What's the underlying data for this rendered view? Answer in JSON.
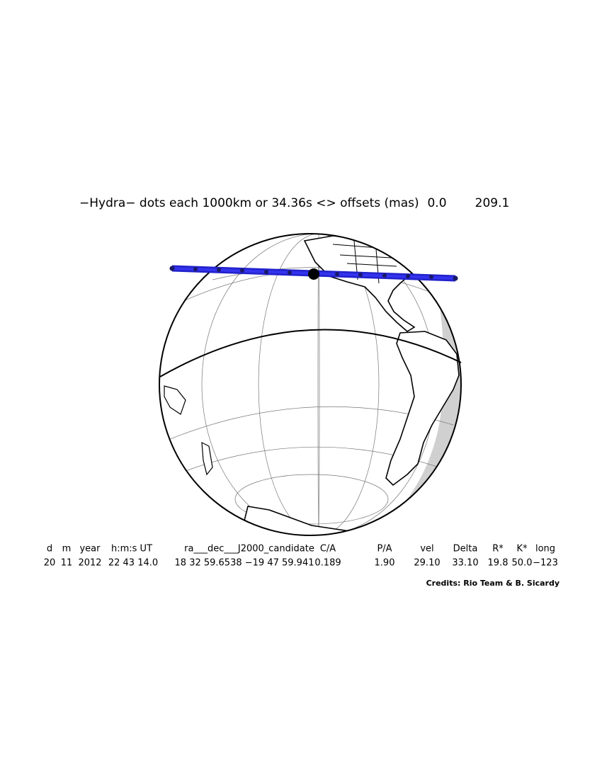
{
  "header": {
    "title": "−Hydra− dots each 1000km or 34.36s <> offsets (mas)",
    "offsets": [
      "0.0",
      "209.1"
    ]
  },
  "table": {
    "columns": [
      "d",
      "m",
      "year",
      "h:m:s UT",
      "ra___dec___J2000_candidate",
      "C/A",
      "P/A",
      "vel",
      "Delta",
      "R*",
      "K*",
      "long"
    ],
    "rows": [
      [
        "20",
        "11",
        "2012",
        "22 43 14.0",
        "18 32 59.6538 −19 47 59.941",
        "0.189",
        "1.90",
        "29.10",
        "33.10",
        "19.8",
        "50.0",
        "−123"
      ]
    ]
  },
  "credits": "Credits: Rio Team & B. Sicardy"
}
